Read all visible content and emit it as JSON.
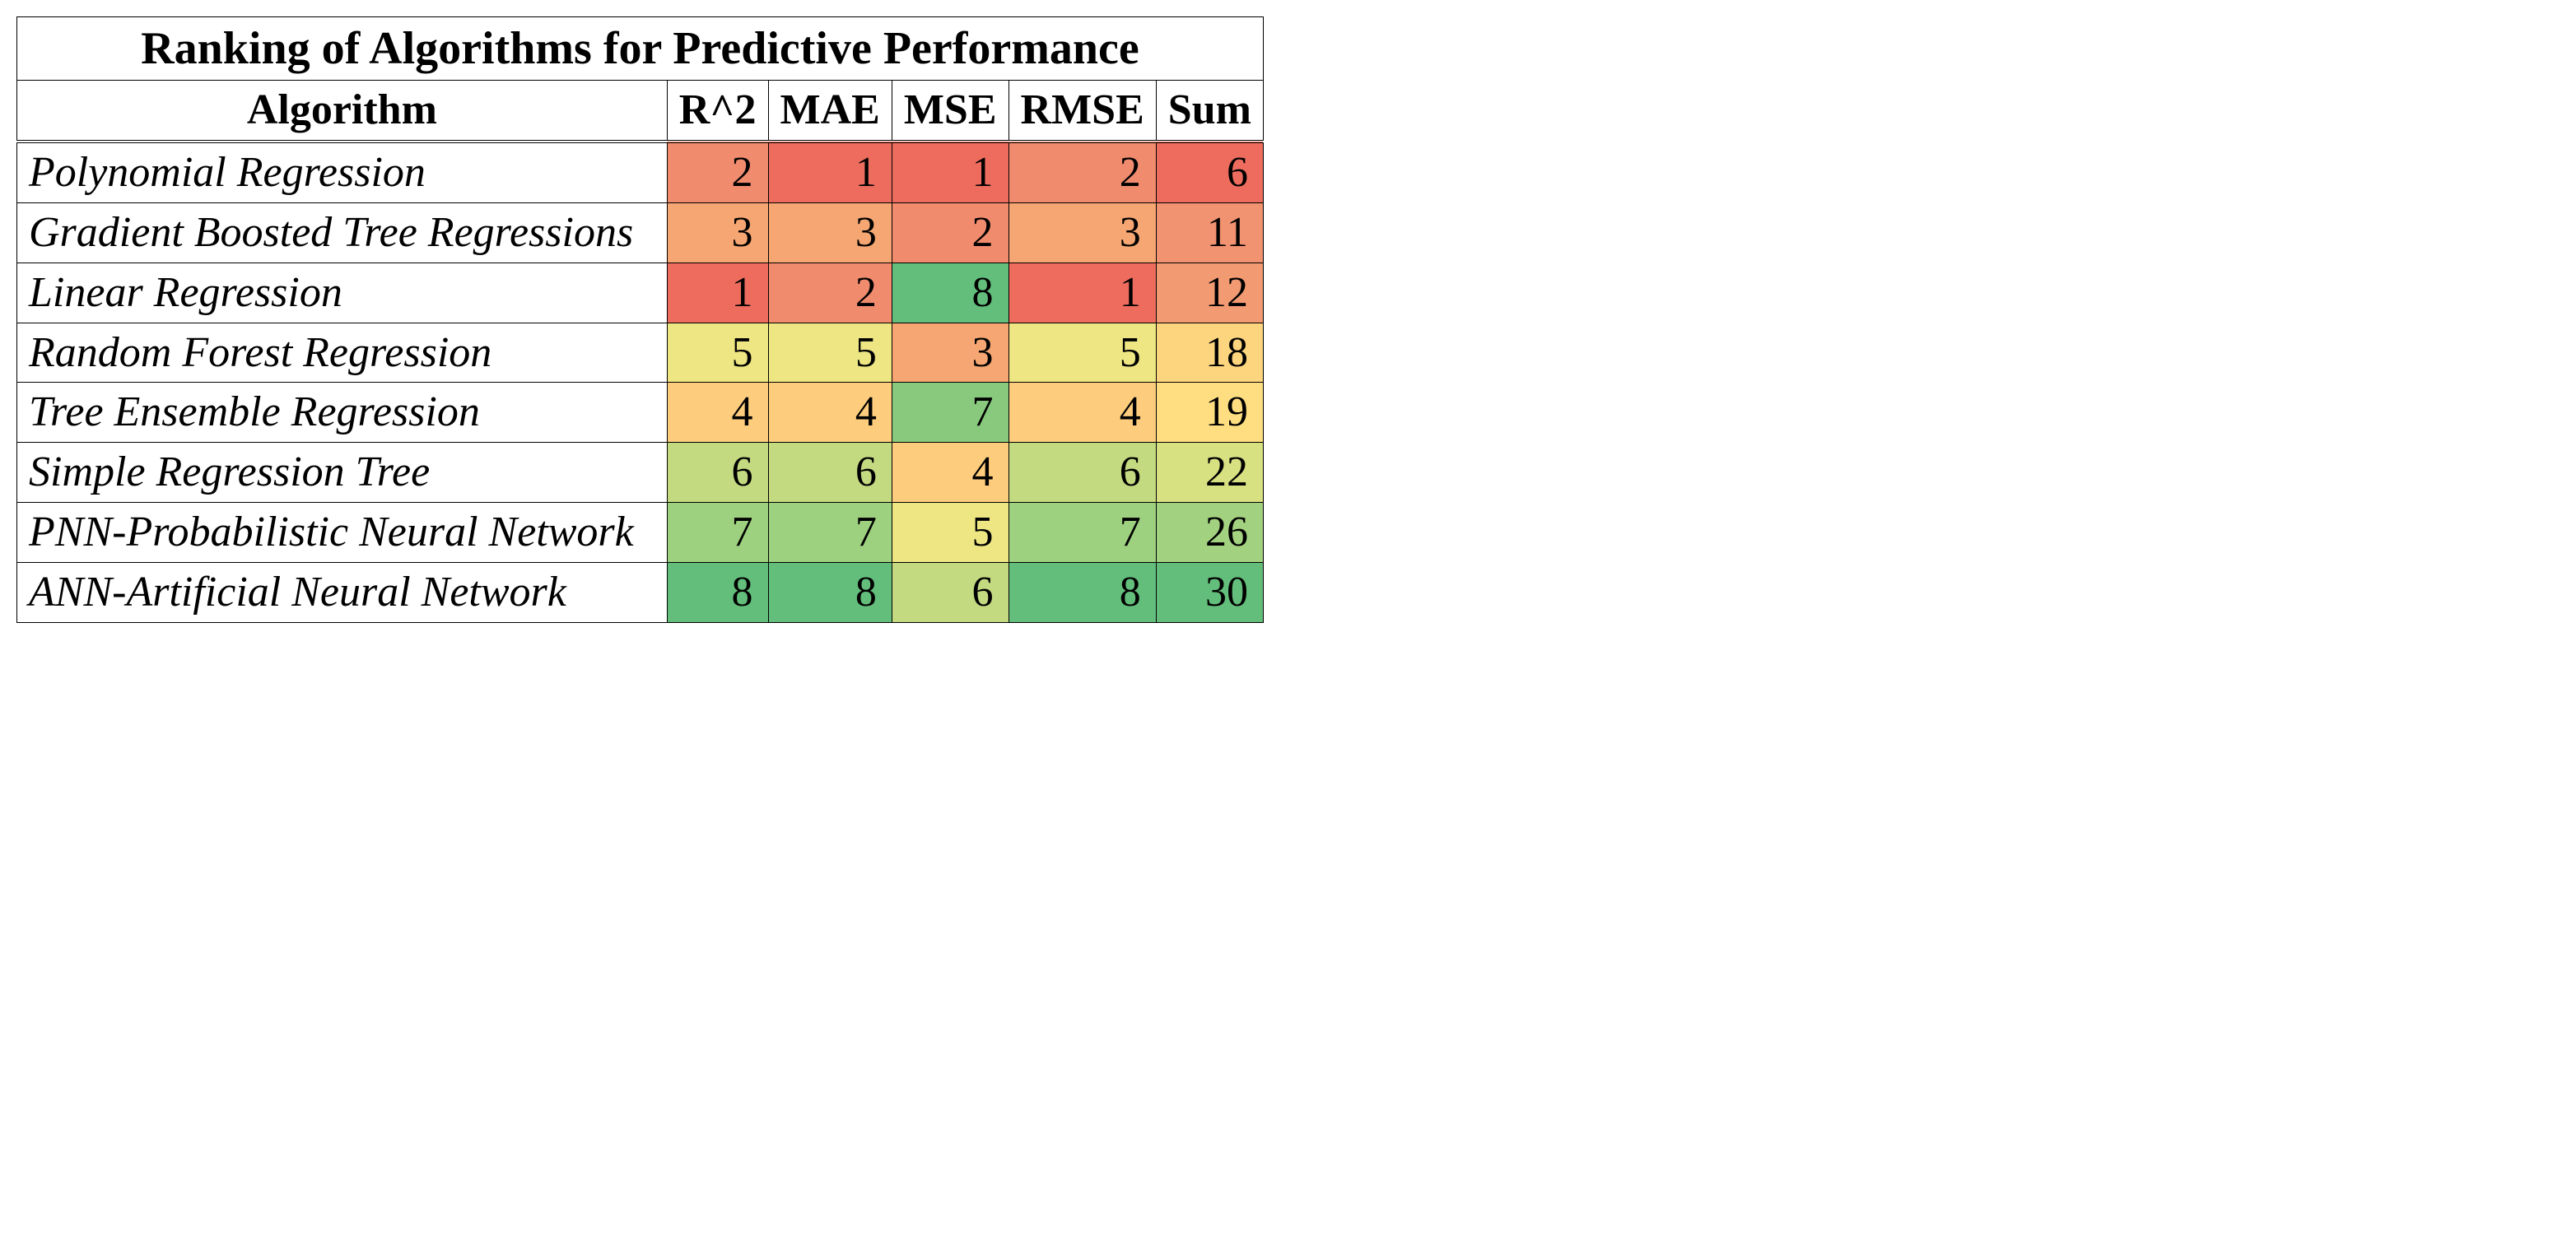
{
  "table": {
    "type": "heatmap-table",
    "title": "Ranking of Algorithms for Predictive Performance",
    "title_fontsize": 56,
    "header_fontsize": 52,
    "cell_fontsize": 52,
    "font_family": "Times New Roman",
    "border_color": "#000000",
    "background_color": "#ffffff",
    "text_color": "#000000",
    "columns": [
      "Algorithm",
      "R^2",
      "MAE",
      "MSE",
      "RMSE",
      "Sum"
    ],
    "algorithm_column_style": {
      "italic": true,
      "align": "left"
    },
    "value_column_style": {
      "align": "right"
    },
    "rows": [
      {
        "algorithm": "Polynomial Regression",
        "cells": [
          {
            "value": 2,
            "bg": "#f08b6e"
          },
          {
            "value": 1,
            "bg": "#ed6c5e"
          },
          {
            "value": 1,
            "bg": "#ed6c5e"
          },
          {
            "value": 2,
            "bg": "#f08b6e"
          },
          {
            "value": 6,
            "bg": "#ed6c5e"
          }
        ]
      },
      {
        "algorithm": "Gradient Boosted Tree Regressions",
        "cells": [
          {
            "value": 3,
            "bg": "#f5a672"
          },
          {
            "value": 3,
            "bg": "#f5a672"
          },
          {
            "value": 2,
            "bg": "#f08b6e"
          },
          {
            "value": 3,
            "bg": "#f5a672"
          },
          {
            "value": 11,
            "bg": "#f19270"
          }
        ]
      },
      {
        "algorithm": "Linear Regression",
        "cells": [
          {
            "value": 1,
            "bg": "#ed6c5e"
          },
          {
            "value": 2,
            "bg": "#f08b6e"
          },
          {
            "value": 8,
            "bg": "#63be7b"
          },
          {
            "value": 1,
            "bg": "#ed6c5e"
          },
          {
            "value": 12,
            "bg": "#f29a71"
          }
        ]
      },
      {
        "algorithm": "Random Forest Regression",
        "cells": [
          {
            "value": 5,
            "bg": "#ede683"
          },
          {
            "value": 5,
            "bg": "#ede683"
          },
          {
            "value": 3,
            "bg": "#f5a672"
          },
          {
            "value": 5,
            "bg": "#ede683"
          },
          {
            "value": 18,
            "bg": "#fdd57e"
          }
        ]
      },
      {
        "algorithm": "Tree Ensemble Regression",
        "cells": [
          {
            "value": 4,
            "bg": "#fdcc7d"
          },
          {
            "value": 4,
            "bg": "#fdcc7d"
          },
          {
            "value": 7,
            "bg": "#88c97d"
          },
          {
            "value": 4,
            "bg": "#fdcc7d"
          },
          {
            "value": 19,
            "bg": "#fede80"
          }
        ]
      },
      {
        "algorithm": "Simple Regression Tree",
        "cells": [
          {
            "value": 6,
            "bg": "#c3da81"
          },
          {
            "value": 6,
            "bg": "#c3da81"
          },
          {
            "value": 4,
            "bg": "#fdcc7d"
          },
          {
            "value": 6,
            "bg": "#c3da81"
          },
          {
            "value": 22,
            "bg": "#d8e182"
          }
        ]
      },
      {
        "algorithm": "PNN-Probabilistic Neural Network",
        "cells": [
          {
            "value": 7,
            "bg": "#9dd07f"
          },
          {
            "value": 7,
            "bg": "#9dd07f"
          },
          {
            "value": 5,
            "bg": "#ede683"
          },
          {
            "value": 7,
            "bg": "#9dd07f"
          },
          {
            "value": 26,
            "bg": "#a2d17f"
          }
        ]
      },
      {
        "algorithm": "ANN-Artificial Neural Network",
        "cells": [
          {
            "value": 8,
            "bg": "#63be7b"
          },
          {
            "value": 8,
            "bg": "#63be7b"
          },
          {
            "value": 6,
            "bg": "#c3da81"
          },
          {
            "value": 8,
            "bg": "#63be7b"
          },
          {
            "value": 30,
            "bg": "#63be7b"
          }
        ]
      }
    ],
    "heatmap_palette_note": "red-yellow-green gradient, red=low rank number, green=high rank number per column; Sum column uses its own min/max"
  }
}
